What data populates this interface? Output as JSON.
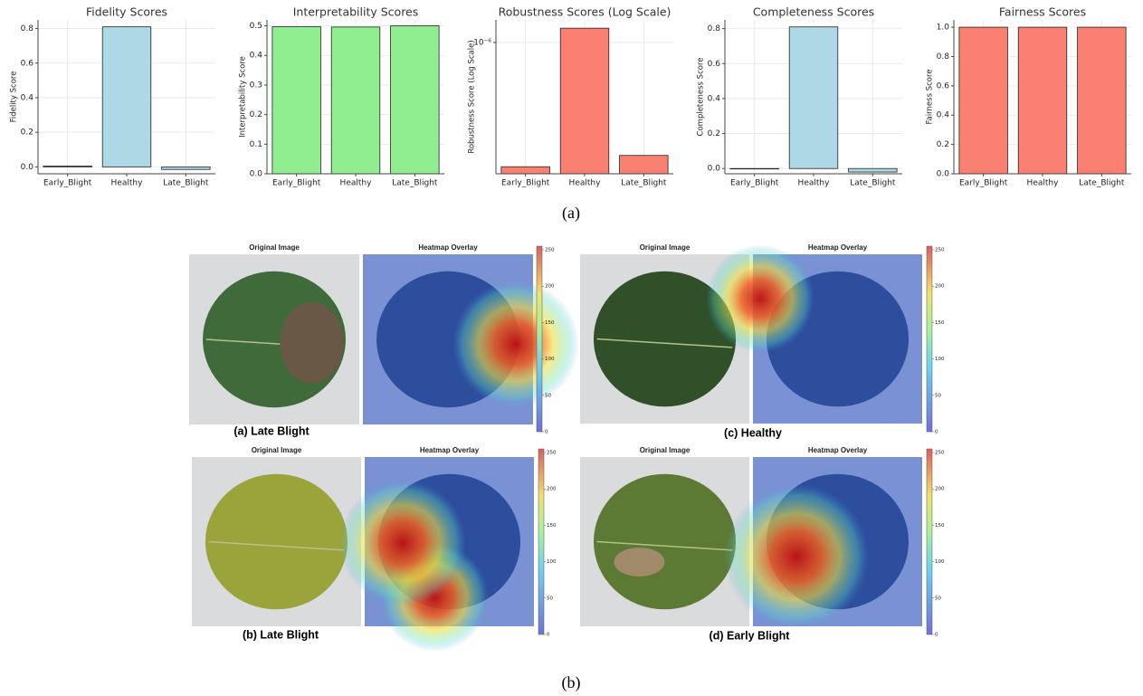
{
  "chart_data": [
    {
      "type": "bar",
      "title": "Fidelity Scores",
      "ylabel": "Fidelity Score",
      "categories": [
        "Early_Blight",
        "Healthy",
        "Late_Blight"
      ],
      "values": [
        0.005,
        0.81,
        -0.015
      ],
      "color": "#add8e6",
      "ylim": [
        -0.04,
        0.85
      ],
      "yticks": [
        {
          "value": 0,
          "label": "0.0"
        },
        0.2,
        0.4,
        0.6,
        0.8
      ],
      "grid": true
    },
    {
      "type": "bar",
      "title": "Interpretability Scores",
      "ylabel": "Interpretability Score",
      "categories": [
        "Early_Blight",
        "Healthy",
        "Late_Blight"
      ],
      "values": [
        0.497,
        0.496,
        0.5
      ],
      "color": "#90ee90",
      "ylim": [
        0,
        0.52
      ],
      "yticks": [
        {
          "value": 0,
          "label": "0.0"
        },
        0.1,
        0.2,
        0.3,
        0.4,
        0.5
      ],
      "grid": true
    },
    {
      "type": "bar",
      "title": "Robustness Scores (Log Scale)",
      "ylabel": "Robustness Score (Log Scale)",
      "categories": [
        "Early_Blight",
        "Healthy",
        "Late_Blight"
      ],
      "values": [
        3.2e-07,
        1.14e-06,
        3.55e-07
      ],
      "color": "#fa8072",
      "log_scale": true,
      "ylim": [
        3e-07,
        1.23e-06
      ],
      "yticks": [
        {
          "value": 1e-06,
          "label": "10⁻⁶"
        }
      ],
      "grid": true
    },
    {
      "type": "bar",
      "title": "Completeness Scores",
      "ylabel": "Completeness Score",
      "categories": [
        "Early_Blight",
        "Healthy",
        "Late_Blight"
      ],
      "values": [
        0,
        0.81,
        -0.02
      ],
      "color": "#add8e6",
      "ylim": [
        -0.03,
        0.85
      ],
      "yticks": [
        {
          "value": 0,
          "label": "0.0"
        },
        0.2,
        0.4,
        0.6,
        0.8
      ],
      "grid": true
    },
    {
      "type": "bar",
      "title": "Fairness Scores",
      "ylabel": "Fairness Score",
      "categories": [
        "Early_Blight",
        "Healthy",
        "Late_Blight"
      ],
      "values": [
        1,
        1,
        1
      ],
      "color": "#fa8072",
      "ylim": [
        0,
        1.05
      ],
      "yticks": [
        {
          "value": 0,
          "label": "0.0"
        },
        0.2,
        0.4,
        0.6,
        0.8,
        {
          "value": 1,
          "label": "1.0"
        }
      ],
      "grid": true
    }
  ],
  "figure_labels": [
    "(a)",
    "(b)"
  ],
  "panels": [
    {
      "original_title": "Original Image",
      "overlay_title": "Heatmap Overlay",
      "caption": "(a) Late Blight"
    },
    {
      "original_title": "Original Image",
      "overlay_title": "Heatmap Overlay",
      "caption": "(c) Healthy"
    },
    {
      "original_title": "Original Image",
      "overlay_title": "Heatmap Overlay",
      "caption": "(b) Late Blight"
    },
    {
      "original_title": "Original Image",
      "overlay_title": "Heatmap Overlay",
      "caption": "(d) Early Blight"
    }
  ],
  "colorbar": {
    "lim": [
      0,
      255
    ],
    "ticks": [
      0,
      50,
      100,
      150,
      200,
      250
    ]
  }
}
